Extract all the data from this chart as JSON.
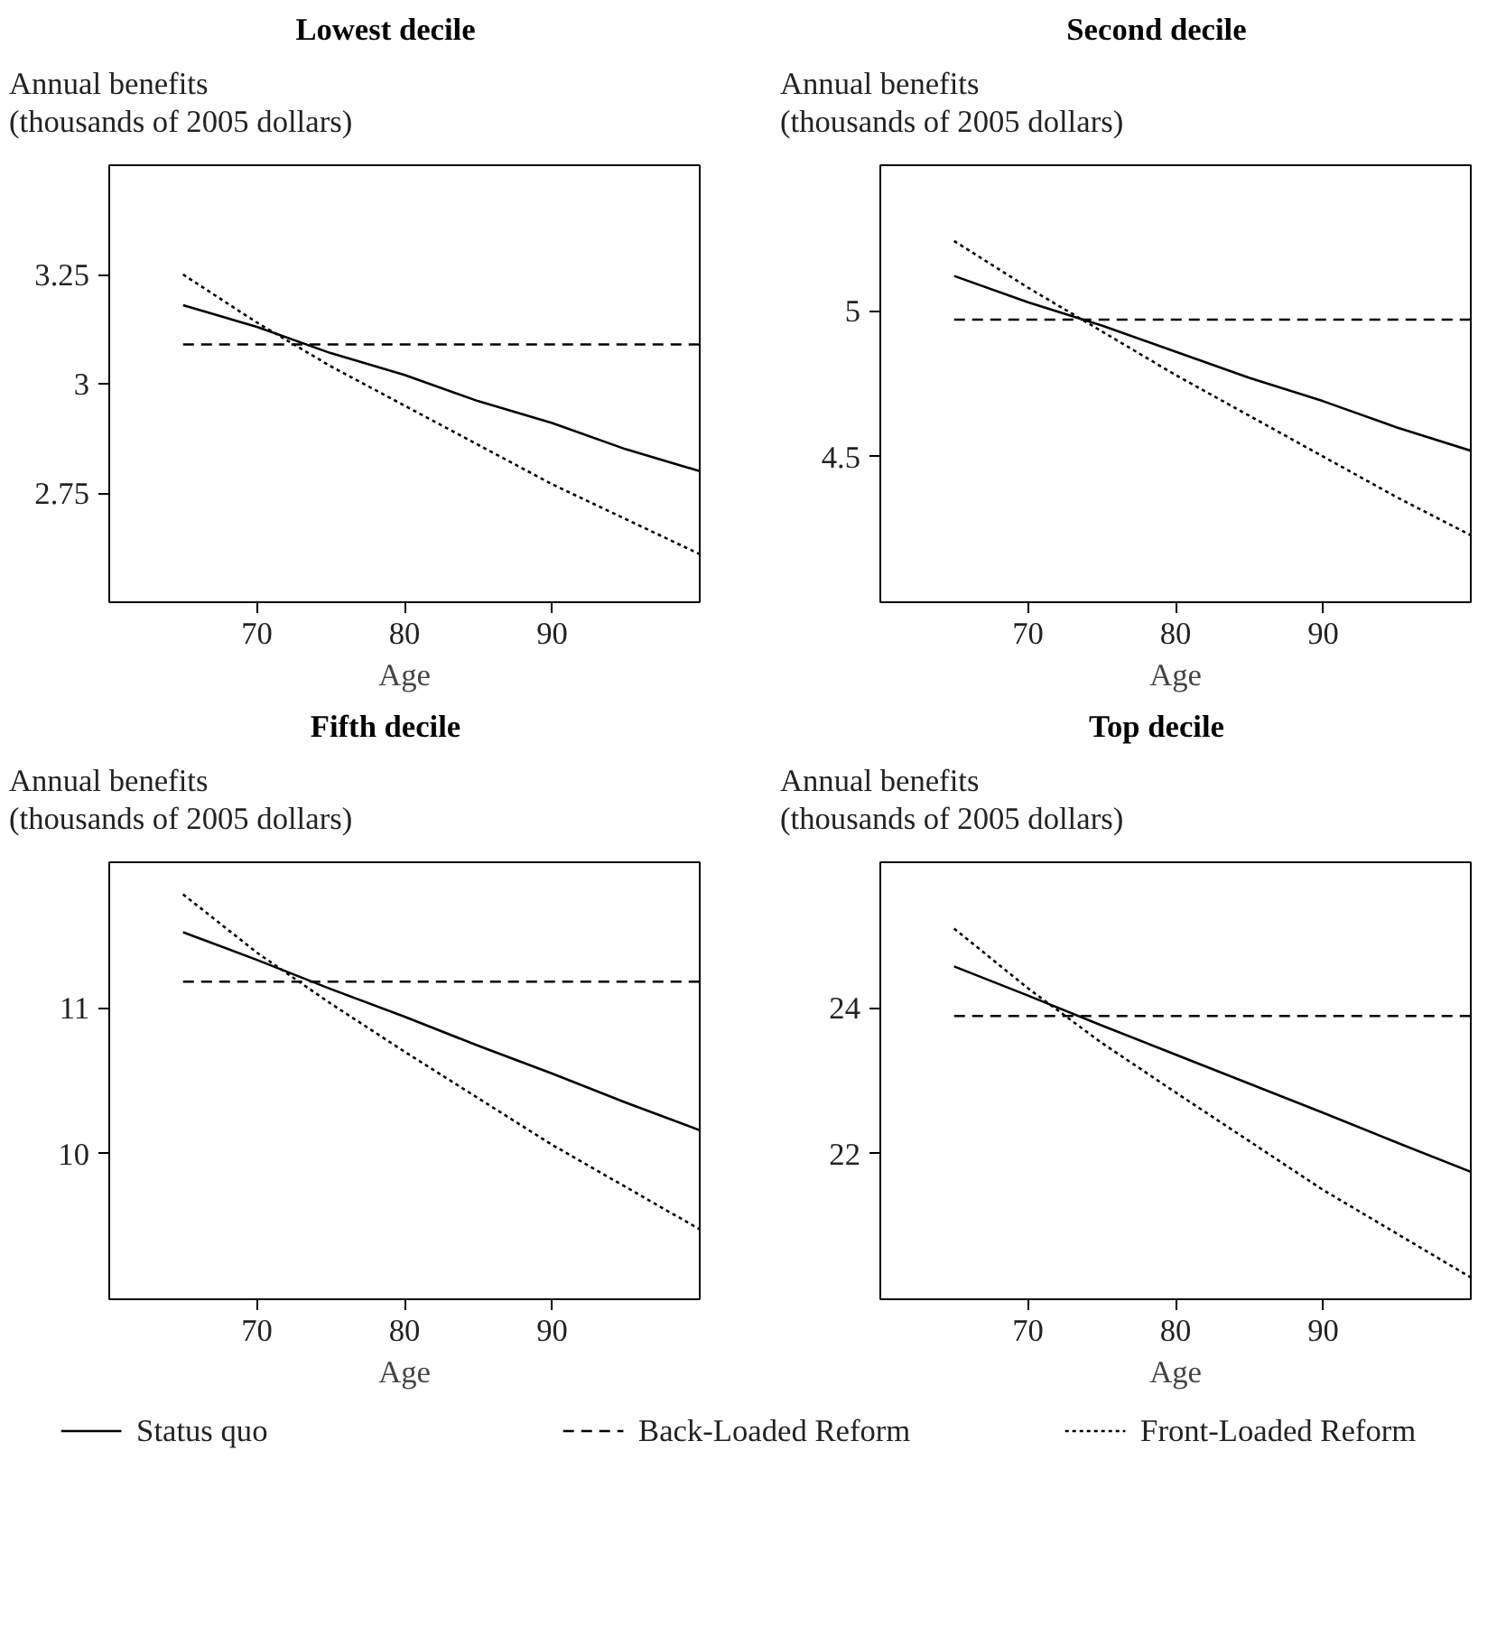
{
  "chart_data": [
    {
      "type": "line",
      "title": "Lowest decile",
      "ylabel": "Annual benefits\n(thousands of 2005 dollars)",
      "xlabel": "Age",
      "x": [
        65,
        70,
        75,
        80,
        85,
        90,
        95,
        100
      ],
      "xlim": [
        60,
        100
      ],
      "xticks": [
        70,
        80,
        90
      ],
      "ylim": [
        2.5,
        3.5
      ],
      "yticks": [
        2.75,
        3,
        3.25
      ],
      "grid": false,
      "legend": "bottom",
      "series": [
        {
          "name": "Status quo",
          "color": "#000000",
          "line_style": "solid",
          "values": [
            3.18,
            3.13,
            3.07,
            3.02,
            2.96,
            2.91,
            2.85,
            2.8
          ]
        },
        {
          "name": "Back-Loaded Reform",
          "color": "#000000",
          "line_style": "dashed",
          "values": [
            3.09,
            3.09,
            3.09,
            3.09,
            3.09,
            3.09,
            3.09,
            3.09
          ]
        },
        {
          "name": "Front-Loaded Reform",
          "color": "#000000",
          "line_style": "dotted",
          "values": [
            3.25,
            3.14,
            3.04,
            2.95,
            2.86,
            2.77,
            2.69,
            2.61
          ]
        }
      ]
    },
    {
      "type": "line",
      "title": "Second decile",
      "ylabel": "Annual benefits\n(thousands of 2005 dollars)",
      "xlabel": "Age",
      "x": [
        65,
        70,
        75,
        80,
        85,
        90,
        95,
        100
      ],
      "xlim": [
        60,
        100
      ],
      "xticks": [
        70,
        80,
        90
      ],
      "ylim": [
        4,
        5.5
      ],
      "yticks": [
        4.5,
        5
      ],
      "grid": false,
      "series": [
        {
          "color": "#000000",
          "line_style": "solid",
          "values": [
            5.12,
            5.03,
            4.95,
            4.86,
            4.77,
            4.69,
            4.6,
            4.52
          ]
        },
        {
          "color": "#000000",
          "line_style": "dashed",
          "values": [
            4.97,
            4.97,
            4.97,
            4.97,
            4.97,
            4.97,
            4.97,
            4.97
          ]
        },
        {
          "color": "#000000",
          "line_style": "dotted",
          "values": [
            5.24,
            5.08,
            4.93,
            4.78,
            4.64,
            4.5,
            4.36,
            4.23
          ]
        }
      ]
    },
    {
      "type": "line",
      "title": "Fifth decile",
      "ylabel": "Annual benefits\n(thousands of 2005 dollars)",
      "xlabel": "Age",
      "x": [
        65,
        70,
        75,
        80,
        85,
        90,
        95,
        100
      ],
      "xlim": [
        60,
        100
      ],
      "xticks": [
        70,
        80,
        90
      ],
      "ylim": [
        9,
        12
      ],
      "yticks": [
        10,
        11
      ],
      "grid": false,
      "series": [
        {
          "color": "#000000",
          "line_style": "solid",
          "values": [
            11.52,
            11.33,
            11.13,
            10.94,
            10.74,
            10.55,
            10.35,
            10.16
          ]
        },
        {
          "color": "#000000",
          "line_style": "dashed",
          "values": [
            11.18,
            11.18,
            11.18,
            11.18,
            11.18,
            11.18,
            11.18,
            11.18
          ]
        },
        {
          "color": "#000000",
          "line_style": "dotted",
          "values": [
            11.78,
            11.38,
            11.03,
            10.7,
            10.38,
            10.06,
            9.77,
            9.48
          ]
        }
      ]
    },
    {
      "type": "line",
      "title": "Top decile",
      "ylabel": "Annual benefits\n(thousands of 2005 dollars)",
      "xlabel": "Age",
      "x": [
        65,
        70,
        75,
        80,
        85,
        90,
        95,
        100
      ],
      "xlim": [
        60,
        100
      ],
      "xticks": [
        70,
        80,
        90
      ],
      "ylim": [
        20,
        26
      ],
      "yticks": [
        22,
        24
      ],
      "grid": false,
      "series": [
        {
          "color": "#000000",
          "line_style": "solid",
          "values": [
            24.57,
            24.17,
            23.76,
            23.36,
            22.96,
            22.56,
            22.15,
            21.75
          ]
        },
        {
          "color": "#000000",
          "line_style": "dashed",
          "values": [
            23.89,
            23.89,
            23.89,
            23.89,
            23.89,
            23.89,
            23.89,
            23.89
          ]
        },
        {
          "color": "#000000",
          "line_style": "dotted",
          "values": [
            25.09,
            24.27,
            23.52,
            22.84,
            22.17,
            21.5,
            20.9,
            20.3
          ]
        }
      ]
    }
  ]
}
